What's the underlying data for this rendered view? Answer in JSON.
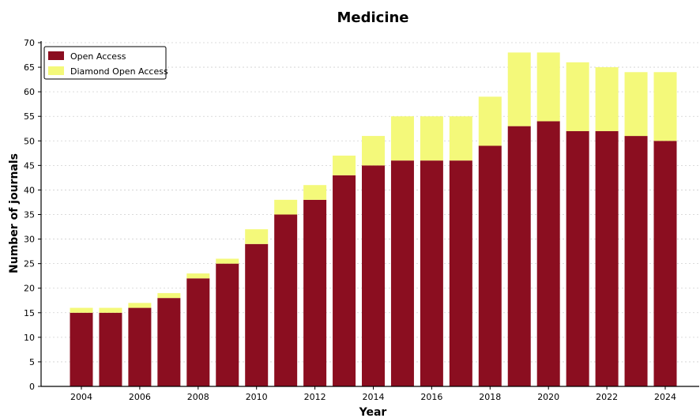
{
  "chart_data": {
    "type": "bar",
    "stacked": true,
    "title": "Medicine",
    "xlabel": "Year",
    "ylabel": "Number of journals",
    "ylim": [
      0,
      70
    ],
    "yticks": [
      0,
      5,
      10,
      15,
      20,
      25,
      30,
      35,
      40,
      45,
      50,
      55,
      60,
      65,
      70
    ],
    "xtick_labels": [
      "2004",
      "2006",
      "2008",
      "2010",
      "2012",
      "2014",
      "2016",
      "2018",
      "2020",
      "2022",
      "2024"
    ],
    "grid": "horizontal dotted",
    "legend_position": "top-left",
    "categories": [
      "2004",
      "2005",
      "2006",
      "2007",
      "2008",
      "2009",
      "2010",
      "2011",
      "2012",
      "2013",
      "2014",
      "2015",
      "2016",
      "2017",
      "2018",
      "2019",
      "2020",
      "2021",
      "2022",
      "2023",
      "2024"
    ],
    "series": [
      {
        "name": "Open Access",
        "color": "#8b0e20",
        "values": [
          15,
          15,
          16,
          18,
          22,
          25,
          29,
          35,
          38,
          43,
          45,
          46,
          46,
          46,
          49,
          53,
          54,
          52,
          52,
          51,
          50
        ]
      },
      {
        "name": "Diamond Open Access",
        "color": "#f4f97a",
        "values": [
          1,
          1,
          1,
          1,
          1,
          1,
          3,
          3,
          3,
          4,
          6,
          9,
          9,
          9,
          10,
          15,
          14,
          14,
          13,
          13,
          14
        ]
      }
    ]
  }
}
